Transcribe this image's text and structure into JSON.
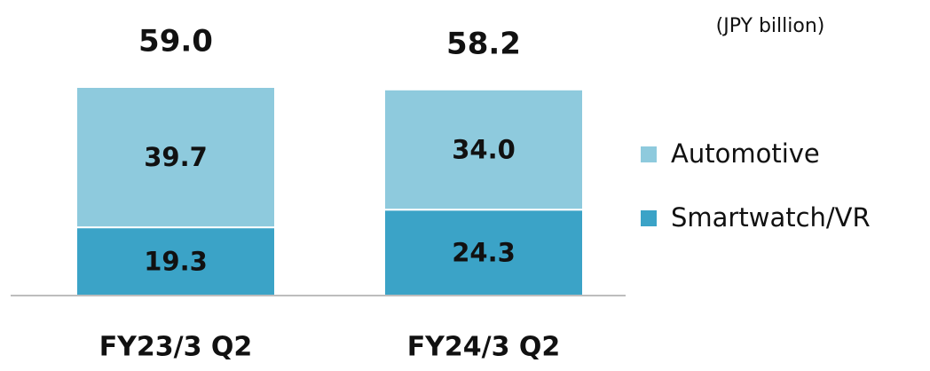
{
  "chart_data": {
    "type": "stacked_bar",
    "annotation": "(JPY billion)",
    "categories": [
      "FY23/3 Q2",
      "FY24/3 Q2"
    ],
    "series": [
      {
        "name": "Smartwatch/VR",
        "color": "#3ba3c7",
        "values": [
          19.3,
          24.3
        ]
      },
      {
        "name": "Automotive",
        "color": "#8ecadd",
        "values": [
          39.7,
          34
        ],
        "value_labels": [
          "39.7",
          "34.0"
        ]
      }
    ],
    "totals": [
      59,
      58.2
    ],
    "total_labels": [
      "59.0",
      "58.2"
    ]
  }
}
